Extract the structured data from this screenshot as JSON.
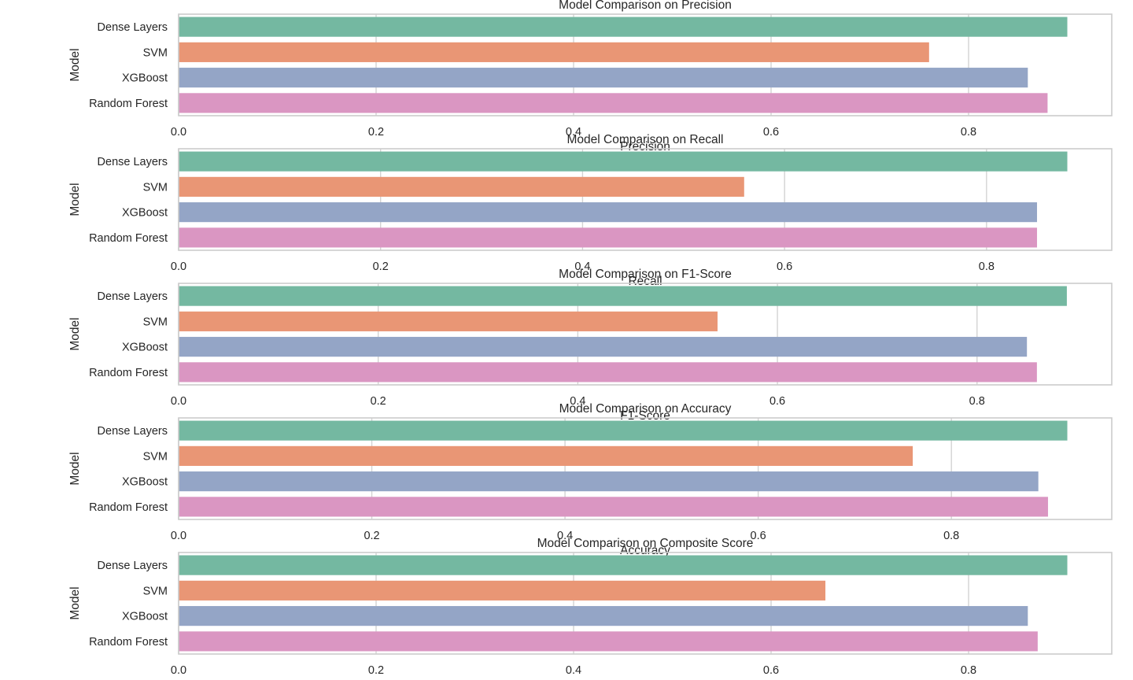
{
  "chart_data": [
    {
      "type": "bar",
      "orientation": "horizontal",
      "title": "Model Comparison on Precision",
      "xlabel": "Precision",
      "ylabel": "Model",
      "categories": [
        "Dense Layers",
        "SVM",
        "XGBoost",
        "Random Forest"
      ],
      "values": [
        0.9,
        0.76,
        0.86,
        0.88
      ],
      "xlim": [
        0,
        0.945
      ],
      "xticks": [
        "0.0",
        "0.2",
        "0.4",
        "0.6",
        "0.8"
      ],
      "grid": true
    },
    {
      "type": "bar",
      "orientation": "horizontal",
      "title": "Model Comparison on Recall",
      "xlabel": "Recall",
      "ylabel": "Model",
      "categories": [
        "Dense Layers",
        "SVM",
        "XGBoost",
        "Random Forest"
      ],
      "values": [
        0.88,
        0.56,
        0.85,
        0.85
      ],
      "xlim": [
        0,
        0.924
      ],
      "xticks": [
        "0.0",
        "0.2",
        "0.4",
        "0.6",
        "0.8"
      ],
      "grid": true
    },
    {
      "type": "bar",
      "orientation": "horizontal",
      "title": "Model Comparison on F1-Score",
      "xlabel": "F1-Score",
      "ylabel": "Model",
      "categories": [
        "Dense Layers",
        "SVM",
        "XGBoost",
        "Random Forest"
      ],
      "values": [
        0.89,
        0.54,
        0.85,
        0.86
      ],
      "xlim": [
        0,
        0.935
      ],
      "xticks": [
        "0.0",
        "0.2",
        "0.4",
        "0.6",
        "0.8"
      ],
      "grid": true
    },
    {
      "type": "bar",
      "orientation": "horizontal",
      "title": "Model Comparison on Accuracy",
      "xlabel": "Accuracy",
      "ylabel": "Model",
      "categories": [
        "Dense Layers",
        "SVM",
        "XGBoost",
        "Random Forest"
      ],
      "values": [
        0.92,
        0.76,
        0.89,
        0.9
      ],
      "xlim": [
        0,
        0.966
      ],
      "xticks": [
        "0.0",
        "0.2",
        "0.4",
        "0.6",
        "0.8"
      ],
      "grid": true
    },
    {
      "type": "bar",
      "orientation": "horizontal",
      "title": "Model Comparison on Composite Score",
      "xlabel": "",
      "ylabel": "Model",
      "categories": [
        "Dense Layers",
        "SVM",
        "XGBoost",
        "Random Forest"
      ],
      "values": [
        0.9,
        0.655,
        0.86,
        0.87
      ],
      "xlim": [
        0,
        0.945
      ],
      "xticks": [
        "0.0",
        "0.2",
        "0.4",
        "0.6",
        "0.8"
      ],
      "grid": true
    }
  ],
  "bar_colors": [
    "#74b8a1",
    "#e99675",
    "#94a5c6",
    "#da96c2"
  ],
  "grid_color": "#d3d3d3",
  "frame_color": "#cccccc",
  "text_color": "#262626"
}
